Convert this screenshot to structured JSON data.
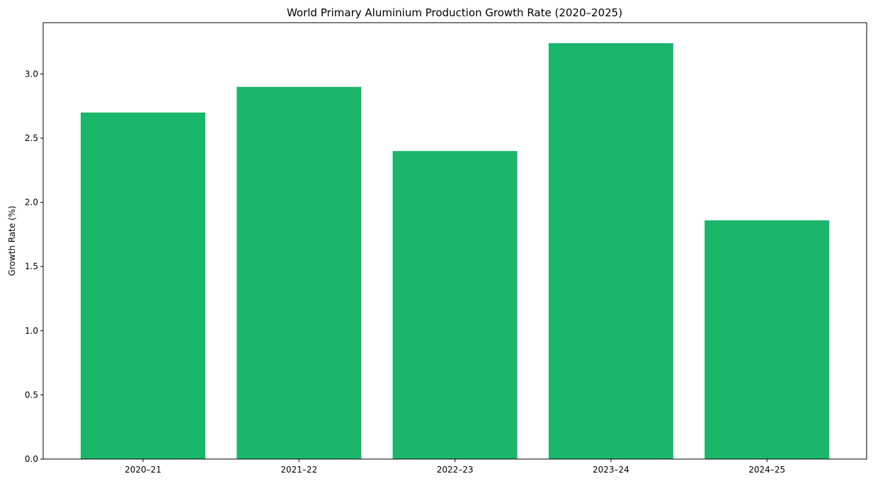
{
  "chart_data": {
    "type": "bar",
    "title": "World Primary Aluminium Production Growth Rate (2020–2025)",
    "xlabel": "",
    "ylabel": "Growth Rate (%)",
    "categories": [
      "2020–21",
      "2021–22",
      "2022–23",
      "2023–24",
      "2024–25"
    ],
    "values": [
      2.7,
      2.9,
      2.4,
      3.24,
      1.86
    ],
    "ylim": [
      0,
      3.4
    ],
    "yticks": [
      "0.0",
      "0.5",
      "1.0",
      "1.5",
      "2.0",
      "2.5",
      "3.0"
    ],
    "grid": false,
    "bar_color": "#1ab66a"
  }
}
